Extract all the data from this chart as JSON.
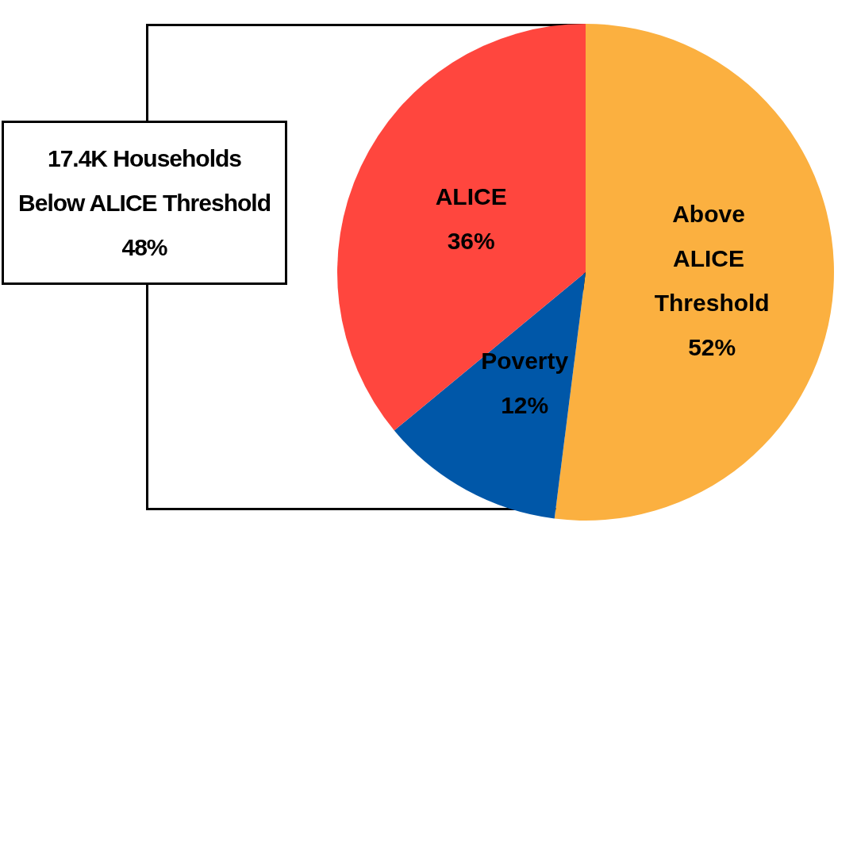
{
  "chart_data": {
    "type": "pie",
    "categories": [
      "Above ALICE Threshold",
      "Poverty",
      "ALICE"
    ],
    "values": [
      52,
      12,
      36
    ],
    "colors": [
      "#fbb040",
      "#0057a8",
      "#ff463e"
    ],
    "value_labels": [
      "52%",
      "12%",
      "36%"
    ],
    "legend": false,
    "annotations": [
      "17.4K Households",
      "Below ALICE Threshold",
      "48%"
    ]
  }
}
